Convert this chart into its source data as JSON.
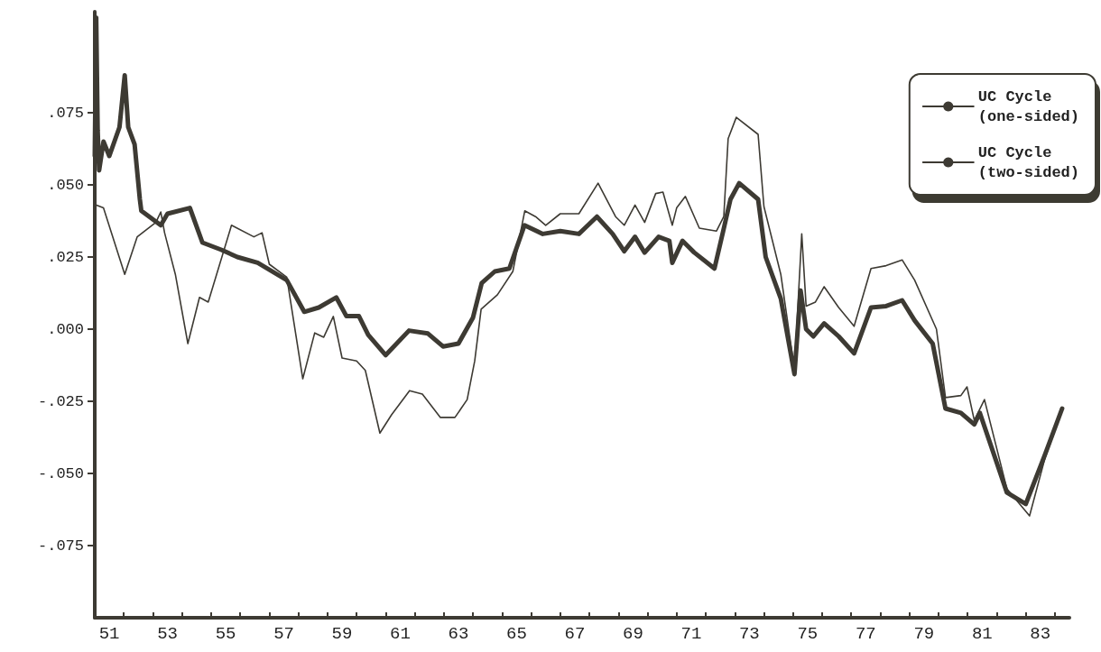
{
  "chart_data": {
    "type": "line",
    "xlim": [
      51,
      84.5
    ],
    "ylim": [
      -0.1,
      0.11
    ],
    "xticks": [
      {
        "value": 51.5,
        "label": "51"
      },
      {
        "value": 53.5,
        "label": "53"
      },
      {
        "value": 55.5,
        "label": "55"
      },
      {
        "value": 57.5,
        "label": "57"
      },
      {
        "value": 59.5,
        "label": "59"
      },
      {
        "value": 61.5,
        "label": "61"
      },
      {
        "value": 63.5,
        "label": "63"
      },
      {
        "value": 65.5,
        "label": "65"
      },
      {
        "value": 67.5,
        "label": "67"
      },
      {
        "value": 69.5,
        "label": "69"
      },
      {
        "value": 71.5,
        "label": "71"
      },
      {
        "value": 73.5,
        "label": "73"
      },
      {
        "value": 75.5,
        "label": "75"
      },
      {
        "value": 77.5,
        "label": "77"
      },
      {
        "value": 79.5,
        "label": "79"
      },
      {
        "value": 81.5,
        "label": "81"
      },
      {
        "value": 83.5,
        "label": "83"
      },
      {
        "value": 51,
        "label": null
      },
      {
        "value": 52,
        "label": null
      },
      {
        "value": 53,
        "label": null
      },
      {
        "value": 54,
        "label": null
      },
      {
        "value": 55,
        "label": null
      },
      {
        "value": 56,
        "label": null
      },
      {
        "value": 57,
        "label": null
      },
      {
        "value": 58,
        "label": null
      },
      {
        "value": 59,
        "label": null
      },
      {
        "value": 60,
        "label": null
      },
      {
        "value": 61,
        "label": null
      },
      {
        "value": 62,
        "label": null
      },
      {
        "value": 63,
        "label": null
      },
      {
        "value": 64,
        "label": null
      },
      {
        "value": 65,
        "label": null
      },
      {
        "value": 66,
        "label": null
      },
      {
        "value": 67,
        "label": null
      },
      {
        "value": 68,
        "label": null
      },
      {
        "value": 69,
        "label": null
      },
      {
        "value": 70,
        "label": null
      },
      {
        "value": 71,
        "label": null
      },
      {
        "value": 72,
        "label": null
      },
      {
        "value": 73,
        "label": null
      },
      {
        "value": 74,
        "label": null
      },
      {
        "value": 75,
        "label": null
      },
      {
        "value": 76,
        "label": null
      },
      {
        "value": 77,
        "label": null
      },
      {
        "value": 78,
        "label": null
      },
      {
        "value": 79,
        "label": null
      },
      {
        "value": 80,
        "label": null
      },
      {
        "value": 81,
        "label": null
      },
      {
        "value": 82,
        "label": null
      },
      {
        "value": 83,
        "label": null
      },
      {
        "value": 84,
        "label": null
      }
    ],
    "yticks": [
      {
        "value": 0.075,
        "label": ".075"
      },
      {
        "value": 0.05,
        "label": ".050"
      },
      {
        "value": 0.025,
        "label": ".025"
      },
      {
        "value": 0,
        "label": ".000"
      },
      {
        "value": -0.025,
        "label": "-.025"
      },
      {
        "value": -0.05,
        "label": "-.050"
      },
      {
        "value": -0.075,
        "label": "-.075"
      }
    ],
    "grid": false,
    "legend": "top right",
    "marker": "none",
    "line_style": "solid",
    "series": [
      {
        "name": "UC Cycle\n(one-sided)",
        "color": "#3d3a33",
        "x": [
          51.0,
          51.05,
          51.1,
          51.15,
          51.3,
          51.5,
          51.85,
          52.03,
          52.15,
          52.37,
          52.55,
          52.6,
          53.27,
          53.5,
          54.27,
          54.7,
          55.35,
          55.9,
          56.6,
          57.6,
          58.2,
          58.7,
          59.3,
          59.65,
          60.08,
          60.4,
          61.0,
          61.8,
          62.45,
          62.97,
          63.5,
          64.0,
          64.3,
          64.75,
          65.25,
          65.77,
          66.4,
          67.0,
          67.64,
          68.26,
          68.8,
          69.2,
          69.57,
          69.9,
          70.38,
          70.75,
          70.85,
          71.2,
          71.6,
          72.3,
          72.6,
          72.85,
          73.15,
          73.8,
          74.06,
          74.58,
          75.05,
          75.26,
          75.45,
          75.7,
          76.07,
          76.57,
          77.1,
          77.68,
          78.2,
          78.75,
          79.18,
          79.8,
          80.24,
          80.77,
          81.23,
          81.42,
          82.35,
          83.0,
          83.66,
          84.25
        ],
        "values": [
          0.06,
          0.108,
          0.069,
          0.055,
          0.065,
          0.06,
          0.07,
          0.088,
          0.07,
          0.064,
          0.045,
          0.041,
          0.036,
          0.04,
          0.042,
          0.03,
          0.0275,
          0.025,
          0.023,
          0.017,
          0.006,
          0.0075,
          0.011,
          0.0045,
          0.0045,
          -0.002,
          -0.009,
          -0.0005,
          -0.0015,
          -0.006,
          -0.005,
          0.004,
          0.016,
          0.02,
          0.021,
          0.036,
          0.033,
          0.034,
          0.033,
          0.039,
          0.033,
          0.027,
          0.032,
          0.0265,
          0.032,
          0.0306,
          0.023,
          0.0306,
          0.0266,
          0.021,
          0.034,
          0.045,
          0.0506,
          0.045,
          0.025,
          0.0106,
          -0.0156,
          0.0134,
          0,
          -0.0025,
          0.002,
          -0.0025,
          -0.0084,
          0.0075,
          0.008,
          0.01,
          0.003,
          -0.005,
          -0.0275,
          -0.029,
          -0.033,
          -0.029,
          -0.0566,
          -0.0606,
          -0.0435,
          -0.0275
        ]
      },
      {
        "name": "UC Cycle\n(two-sided)",
        "color": "#3d3a33",
        "x": [
          51.06,
          51.3,
          52.03,
          52.46,
          53.1,
          53.27,
          53.4,
          53.77,
          54.2,
          54.6,
          54.9,
          55.7,
          56.47,
          56.75,
          57.0,
          57.6,
          58.15,
          58.56,
          58.87,
          59.2,
          59.5,
          60.0,
          60.3,
          60.8,
          61.2,
          61.82,
          62.26,
          62.88,
          63.38,
          63.8,
          64.06,
          64.28,
          64.84,
          65.37,
          65.78,
          66.15,
          66.5,
          67.0,
          67.64,
          68.3,
          68.9,
          69.2,
          69.57,
          69.9,
          70.28,
          70.53,
          70.85,
          71.0,
          71.3,
          71.78,
          72.37,
          72.62,
          72.77,
          73.05,
          73.8,
          74.0,
          74.58,
          75.05,
          75.3,
          75.45,
          75.77,
          76.07,
          76.57,
          77.1,
          77.68,
          78.2,
          78.75,
          79.18,
          79.93,
          80.24,
          80.77,
          80.98,
          81.23,
          81.58,
          82.35,
          83.13,
          83.66,
          84.25
        ],
        "values": [
          0.043,
          0.042,
          0.019,
          0.032,
          0.037,
          0.0406,
          0.0334,
          0.019,
          -0.005,
          0.011,
          0.0094,
          0.036,
          0.032,
          0.0334,
          0.0225,
          0.018,
          -0.0172,
          -0.0013,
          -0.0028,
          0.0044,
          -0.01,
          -0.011,
          -0.0143,
          -0.036,
          -0.0297,
          -0.0213,
          -0.0225,
          -0.0306,
          -0.0306,
          -0.0244,
          -0.011,
          0.0069,
          0.0119,
          0.02,
          0.041,
          0.039,
          0.036,
          0.04,
          0.04,
          0.0506,
          0.039,
          0.036,
          0.043,
          0.037,
          0.047,
          0.0475,
          0.036,
          0.042,
          0.046,
          0.035,
          0.034,
          0.039,
          0.066,
          0.0734,
          0.0675,
          0.0425,
          0.019,
          -0.014,
          0.033,
          0.008,
          0.0094,
          0.0147,
          0.0075,
          0.001,
          0.021,
          0.022,
          0.024,
          0.017,
          0,
          -0.0237,
          -0.023,
          -0.02,
          -0.0316,
          -0.0244,
          -0.0553,
          -0.0647,
          -0.0447,
          -0.028
        ]
      }
    ]
  }
}
